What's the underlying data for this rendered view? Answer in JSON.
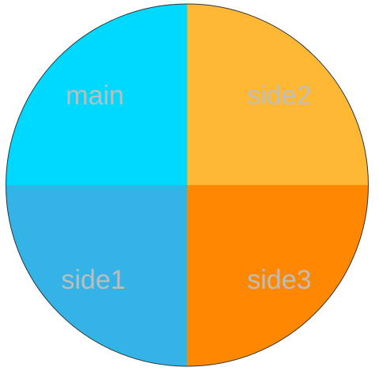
{
  "diagram": {
    "quadrants": [
      {
        "id": "main",
        "label": "main",
        "color": "#00D9FF"
      },
      {
        "id": "side2",
        "label": "side2",
        "color": "#FFB833"
      },
      {
        "id": "side1",
        "label": "side1",
        "color": "#33B3E6"
      },
      {
        "id": "side3",
        "label": "side3",
        "color": "#FF8800"
      }
    ],
    "outline_color": "#333333",
    "label_color": "#bdbdbd"
  }
}
